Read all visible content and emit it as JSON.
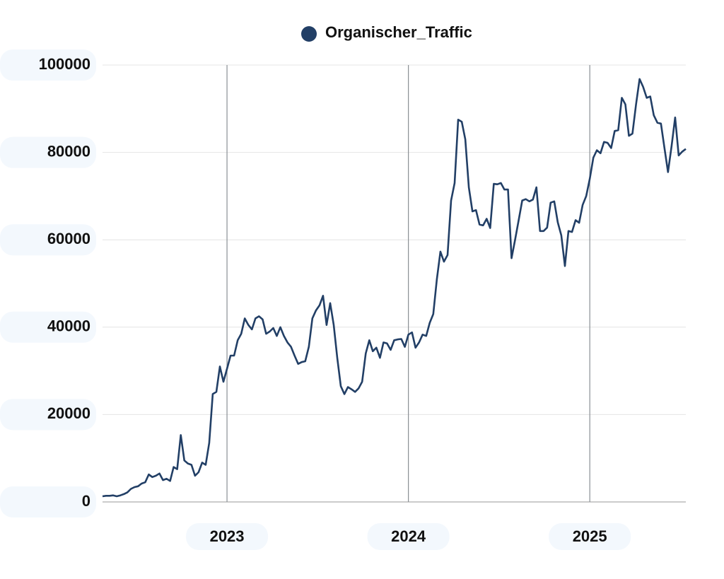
{
  "chart_data": {
    "type": "line",
    "categories": [
      null,
      null,
      null,
      null,
      null,
      null,
      null,
      null,
      null,
      null,
      null,
      null,
      null,
      null,
      null,
      null,
      null,
      null,
      null,
      null,
      null,
      null,
      null,
      null,
      null,
      null,
      null,
      null,
      null,
      null,
      null,
      null,
      null,
      null,
      null,
      "2023",
      null,
      null,
      null,
      null,
      null,
      null,
      null,
      null,
      null,
      null,
      null,
      null,
      null,
      null,
      null,
      null,
      null,
      null,
      null,
      null,
      null,
      null,
      null,
      null,
      null,
      null,
      null,
      null,
      null,
      null,
      null,
      null,
      null,
      null,
      null,
      null,
      null,
      null,
      null,
      null,
      null,
      null,
      null,
      null,
      null,
      null,
      null,
      null,
      null,
      null,
      "2024",
      null,
      null,
      null,
      null,
      null,
      null,
      null,
      null,
      null,
      null,
      null,
      null,
      null,
      null,
      null,
      null,
      null,
      null,
      null,
      null,
      null,
      null,
      null,
      null,
      null,
      null,
      null,
      null,
      null,
      null,
      null,
      null,
      null,
      null,
      null,
      null,
      null,
      null,
      null,
      null,
      null,
      null,
      null,
      null,
      null,
      null,
      null,
      null,
      null,
      null,
      "2025",
      null,
      null,
      null,
      null,
      null,
      null,
      null,
      null,
      null,
      null,
      null,
      null,
      null,
      null,
      null,
      null,
      null,
      null,
      null,
      null,
      null,
      null,
      null,
      null,
      null,
      null,
      null
    ],
    "series": [
      {
        "name": "Organischer_Traffic",
        "color": "#223f66",
        "values": [
          1300,
          1400,
          1400,
          1500,
          1300,
          1500,
          1800,
          2200,
          3000,
          3400,
          3600,
          4200,
          4500,
          6300,
          5700,
          6000,
          6500,
          5000,
          5300,
          4800,
          8000,
          7500,
          15300,
          9500,
          8800,
          8500,
          6000,
          6800,
          9000,
          8500,
          13500,
          24700,
          25200,
          31000,
          27500,
          30500,
          33500,
          33500,
          37000,
          38500,
          42000,
          40500,
          39500,
          42000,
          42500,
          41800,
          38500,
          39000,
          39800,
          38000,
          40000,
          38000,
          36500,
          35500,
          33500,
          31600,
          32000,
          32200,
          35500,
          42000,
          43800,
          45000,
          47200,
          40500,
          45500,
          40500,
          33000,
          26500,
          24700,
          26300,
          25800,
          25200,
          26000,
          27500,
          34000,
          37000,
          34500,
          35300,
          33000,
          36500,
          36300,
          34800,
          37000,
          37200,
          37300,
          35500,
          38300,
          38800,
          35300,
          36500,
          38300,
          38000,
          41000,
          43000,
          51000,
          57300,
          55000,
          56500,
          69000,
          73000,
          87500,
          87000,
          83000,
          72000,
          66500,
          66800,
          63500,
          63300,
          64800,
          62700,
          72800,
          72700,
          73000,
          71500,
          71500,
          55800,
          60000,
          64500,
          69000,
          69300,
          68800,
          69200,
          72000,
          62000,
          62000,
          62800,
          68500,
          68800,
          64000,
          61000,
          54000,
          62000,
          61800,
          64500,
          63900,
          68000,
          70000,
          74000,
          78800,
          80500,
          79800,
          82400,
          82200,
          81000,
          84900,
          85100,
          92500,
          91000,
          83800,
          84300,
          91000,
          96800,
          95000,
          92500,
          92800,
          88500,
          86800,
          86600,
          81000,
          75500,
          81500,
          88000,
          79300,
          80200,
          80800
        ]
      }
    ],
    "ylim": [
      0,
      100000
    ],
    "yticks": [
      0,
      20000,
      40000,
      60000,
      80000,
      100000
    ],
    "grid": true
  }
}
